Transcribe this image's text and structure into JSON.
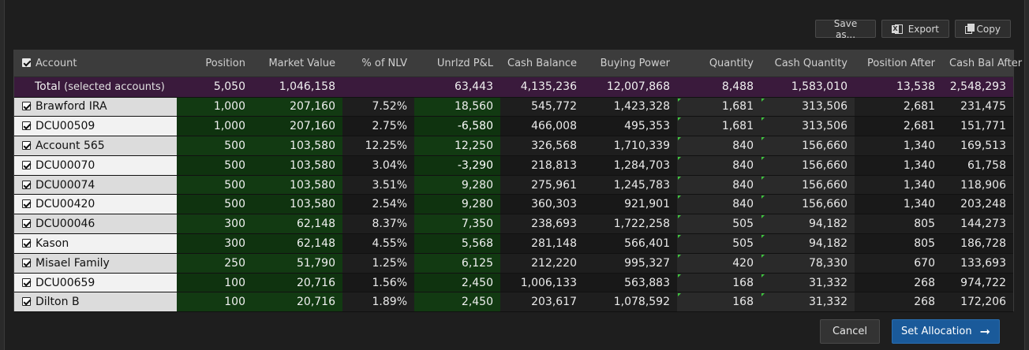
{
  "toolbar": {
    "save_label": "Save as...",
    "export_label": "Export",
    "copy_label": "Copy",
    "export_icon": "excel-icon",
    "copy_icon": "copy-icon"
  },
  "table": {
    "headers": [
      "Account",
      "Position",
      "Market Value",
      "% of NLV",
      "Unrlzd P&L",
      "Cash Balance",
      "Buying Power",
      "Quantity",
      "Cash Quantity",
      "Position After",
      "Cash Bal After"
    ],
    "total": {
      "label": "Total",
      "note": "(selected accounts)",
      "position": "5,050",
      "market_value": "1,046,158",
      "nlv": "",
      "pnl": "63,443",
      "cash_balance": "4,135,236",
      "buying_power": "12,007,868",
      "quantity": "8,488",
      "cash_quantity": "1,583,010",
      "position_after": "13,538",
      "cash_bal_after": "2,548,293"
    },
    "rows": [
      {
        "account": "Brawford IRA",
        "position": "1,000",
        "market_value": "207,160",
        "nlv": "7.52%",
        "pnl": "18,560",
        "pnl_negative": false,
        "cash_balance": "545,772",
        "buying_power": "1,423,328",
        "quantity": "1,681",
        "cash_quantity": "313,506",
        "position_after": "2,681",
        "cash_bal_after": "231,475"
      },
      {
        "account": "DCU00509",
        "position": "1,000",
        "market_value": "207,160",
        "nlv": "2.75%",
        "pnl": "-6,580",
        "pnl_negative": true,
        "cash_balance": "466,008",
        "buying_power": "495,353",
        "quantity": "1,681",
        "cash_quantity": "313,506",
        "position_after": "2,681",
        "cash_bal_after": "151,771"
      },
      {
        "account": "Account 565",
        "position": "500",
        "market_value": "103,580",
        "nlv": "12.25%",
        "pnl": "12,250",
        "pnl_negative": false,
        "cash_balance": "326,568",
        "buying_power": "1,710,339",
        "quantity": "840",
        "cash_quantity": "156,660",
        "position_after": "1,340",
        "cash_bal_after": "169,513"
      },
      {
        "account": "DCU00070",
        "position": "500",
        "market_value": "103,580",
        "nlv": "3.04%",
        "pnl": "-3,290",
        "pnl_negative": true,
        "cash_balance": "218,813",
        "buying_power": "1,284,703",
        "quantity": "840",
        "cash_quantity": "156,660",
        "position_after": "1,340",
        "cash_bal_after": "61,758"
      },
      {
        "account": "DCU00074",
        "position": "500",
        "market_value": "103,580",
        "nlv": "3.51%",
        "pnl": "9,280",
        "pnl_negative": false,
        "cash_balance": "275,961",
        "buying_power": "1,245,783",
        "quantity": "840",
        "cash_quantity": "156,660",
        "position_after": "1,340",
        "cash_bal_after": "118,906"
      },
      {
        "account": "DCU00420",
        "position": "500",
        "market_value": "103,580",
        "nlv": "2.54%",
        "pnl": "9,280",
        "pnl_negative": false,
        "cash_balance": "360,303",
        "buying_power": "921,901",
        "quantity": "840",
        "cash_quantity": "156,660",
        "position_after": "1,340",
        "cash_bal_after": "203,248"
      },
      {
        "account": "DCU00046",
        "position": "300",
        "market_value": "62,148",
        "nlv": "8.37%",
        "pnl": "7,350",
        "pnl_negative": false,
        "cash_balance": "238,693",
        "buying_power": "1,722,258",
        "quantity": "505",
        "cash_quantity": "94,182",
        "position_after": "805",
        "cash_bal_after": "144,273"
      },
      {
        "account": "Kason",
        "position": "300",
        "market_value": "62,148",
        "nlv": "4.55%",
        "pnl": "5,568",
        "pnl_negative": false,
        "cash_balance": "281,148",
        "buying_power": "566,401",
        "quantity": "505",
        "cash_quantity": "94,182",
        "position_after": "805",
        "cash_bal_after": "186,728"
      },
      {
        "account": "Misael Family",
        "position": "250",
        "market_value": "51,790",
        "nlv": "1.25%",
        "pnl": "6,125",
        "pnl_negative": false,
        "cash_balance": "212,220",
        "buying_power": "995,327",
        "quantity": "420",
        "cash_quantity": "78,330",
        "position_after": "670",
        "cash_bal_after": "133,693"
      },
      {
        "account": "DCU00659",
        "position": "100",
        "market_value": "20,716",
        "nlv": "1.56%",
        "pnl": "2,450",
        "pnl_negative": false,
        "cash_balance": "1,006,133",
        "buying_power": "563,883",
        "quantity": "168",
        "cash_quantity": "31,332",
        "position_after": "268",
        "cash_bal_after": "974,722"
      },
      {
        "account": "Dilton B",
        "position": "100",
        "market_value": "20,716",
        "nlv": "1.89%",
        "pnl": "2,450",
        "pnl_negative": false,
        "cash_balance": "203,617",
        "buying_power": "1,078,592",
        "quantity": "168",
        "cash_quantity": "31,332",
        "position_after": "268",
        "cash_bal_after": "172,206"
      }
    ]
  },
  "footer": {
    "cancel_label": "Cancel",
    "set_allocation_label": "Set Allocation",
    "arrow_icon": "arrow-right-icon"
  },
  "colors": {
    "total_row": "#3a1a3c",
    "positive_cell": "#123a12",
    "negative_cell": "#8c1010",
    "primary_button": "#1a5a9a"
  }
}
